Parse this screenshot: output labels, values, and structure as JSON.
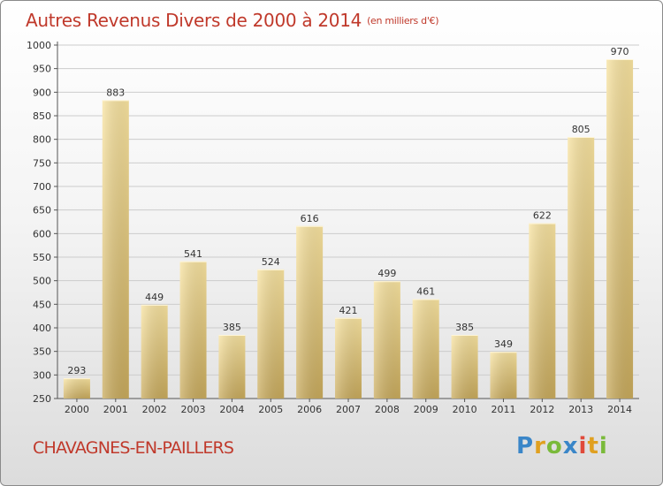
{
  "header": {
    "title": "Autres Revenus Divers de 2000 à 2014",
    "subtitle": "(en milliers d'€)"
  },
  "footer": {
    "place": "CHAVAGNES-EN-PAILLERS",
    "logo": {
      "p": "P",
      "r": "r",
      "o": "o",
      "x": "x",
      "i1": "i",
      "t": "t",
      "i2": "i"
    }
  },
  "colors": {
    "title": "#c0392b",
    "bar_light": "#f8e3a0",
    "bar_dark": "#c8aa5c",
    "grid": "#cccccc"
  },
  "chart_data": {
    "type": "bar",
    "title": "Autres Revenus Divers de 2000 à 2014",
    "subtitle": "(en milliers d'€)",
    "xlabel": "",
    "ylabel": "",
    "categories": [
      "2000",
      "2001",
      "2002",
      "2003",
      "2004",
      "2005",
      "2006",
      "2007",
      "2008",
      "2009",
      "2010",
      "2011",
      "2012",
      "2013",
      "2014"
    ],
    "values": [
      293,
      883,
      449,
      541,
      385,
      524,
      616,
      421,
      499,
      461,
      385,
      349,
      622,
      805,
      970
    ],
    "ylim": [
      250,
      1000
    ],
    "yticks": [
      250,
      300,
      350,
      400,
      450,
      500,
      550,
      600,
      650,
      700,
      750,
      800,
      850,
      900,
      950,
      1000
    ],
    "grid": true,
    "legend": "none"
  }
}
